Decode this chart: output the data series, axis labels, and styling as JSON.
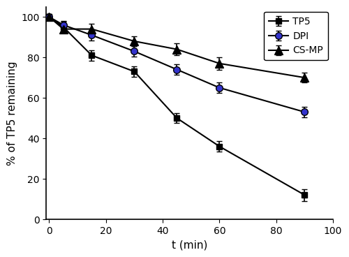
{
  "title": "",
  "xlabel": "t (min)",
  "ylabel": "% of TP5 remaining",
  "xlim": [
    -1,
    100
  ],
  "ylim": [
    0,
    105
  ],
  "xticks": [
    0,
    20,
    40,
    60,
    80,
    100
  ],
  "yticks": [
    0,
    20,
    40,
    60,
    80,
    100
  ],
  "series": [
    {
      "label": "TP5",
      "x": [
        0,
        5,
        15,
        30,
        45,
        60,
        90
      ],
      "y": [
        100,
        95,
        81,
        73,
        50,
        36,
        12
      ],
      "yerr": [
        1.5,
        2.5,
        2.5,
        2.5,
        2.5,
        2.5,
        3.0
      ],
      "line_color": "#000000",
      "marker": "s",
      "marker_facecolor": "#000000",
      "marker_edgecolor": "#000000",
      "markersize": 6,
      "linewidth": 1.5
    },
    {
      "label": "DPI",
      "x": [
        0,
        5,
        15,
        30,
        45,
        60,
        90
      ],
      "y": [
        100,
        96,
        91,
        83,
        74,
        65,
        53
      ],
      "yerr": [
        1.0,
        2.0,
        2.5,
        2.5,
        2.5,
        2.5,
        2.5
      ],
      "line_color": "#000000",
      "marker": "o",
      "marker_facecolor": "#3333cc",
      "marker_edgecolor": "#000000",
      "markersize": 7,
      "linewidth": 1.5
    },
    {
      "label": "CS-MP",
      "x": [
        0,
        5,
        15,
        30,
        45,
        60,
        90
      ],
      "y": [
        100,
        94,
        94,
        88,
        84,
        77,
        70
      ],
      "yerr": [
        1.0,
        2.0,
        2.5,
        2.5,
        3.0,
        3.0,
        2.5
      ],
      "line_color": "#000000",
      "marker": "^",
      "marker_facecolor": "#000000",
      "marker_edgecolor": "#000000",
      "markersize": 8,
      "linewidth": 1.5
    }
  ],
  "legend_loc": "upper right",
  "legend_fontsize": 10,
  "tick_fontsize": 10,
  "label_fontsize": 11,
  "figure_facecolor": "#ffffff",
  "capsize": 3
}
